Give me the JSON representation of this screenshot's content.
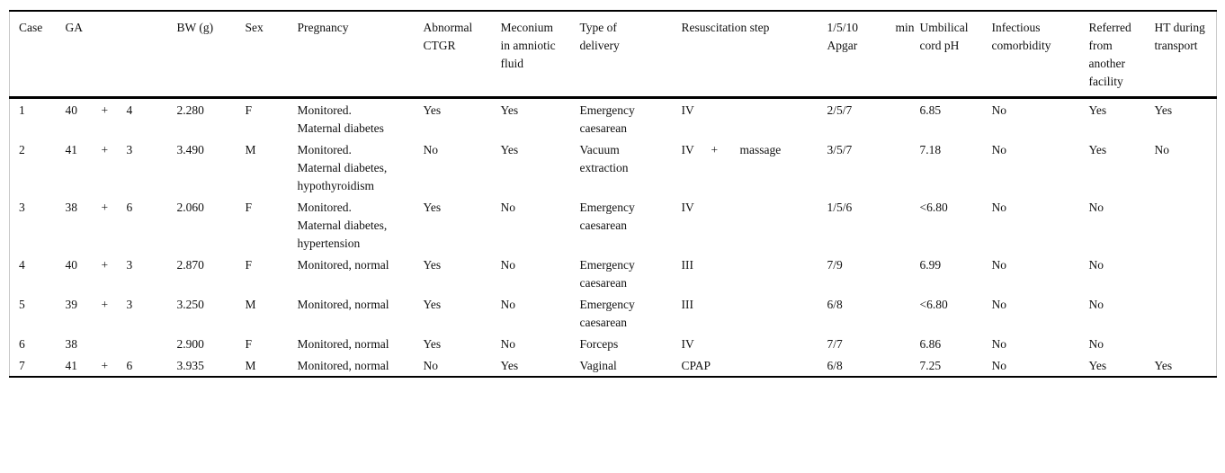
{
  "table": {
    "headers": {
      "case": "Case",
      "ga": "GA",
      "bw": "BW (g)",
      "sex": "Sex",
      "pregnancy": "Pregnancy",
      "ctgr": "Abnormal CTGR",
      "meconium": "Meconium in amniotic fluid",
      "delivery": "Type of delivery",
      "resus": "Resuscitation step",
      "apgar_scores": "1/5/10",
      "apgar_min": "min",
      "apgar_label": "Apgar",
      "ph": "Umbilical cord pH",
      "infectious": "Infectious comorbidity",
      "referred": "Referred from another facility",
      "ht": "HT during transport"
    },
    "fields": [
      "case",
      "ga_w",
      "ga_plus",
      "ga_d",
      "bw",
      "sex",
      "pregnancy",
      "ctgr",
      "meconium",
      "delivery",
      "res1",
      "res2",
      "res3",
      "apgar",
      "ph",
      "infectious",
      "referred",
      "ht"
    ],
    "rows": [
      {
        "case": "1",
        "ga_w": "40",
        "ga_plus": "+",
        "ga_d": "4",
        "bw": "2.280",
        "sex": "F",
        "pregnancy": "Monitored. Maternal diabetes",
        "ctgr": "Yes",
        "meconium": "Yes",
        "delivery": "Emergency caesarean",
        "res1": "IV",
        "res2": "",
        "res3": "",
        "apgar": "2/5/7",
        "ph": "6.85",
        "infectious": "No",
        "referred": "Yes",
        "ht": "Yes"
      },
      {
        "case": "2",
        "ga_w": "41",
        "ga_plus": "+",
        "ga_d": "3",
        "bw": "3.490",
        "sex": "M",
        "pregnancy": "Monitored. Maternal diabetes, hypothyroidism",
        "ctgr": "No",
        "meconium": "Yes",
        "delivery": "Vacuum extraction",
        "res1": "IV",
        "res2": "+",
        "res3": "massage",
        "apgar": "3/5/7",
        "ph": "7.18",
        "infectious": "No",
        "referred": "Yes",
        "ht": "No"
      },
      {
        "case": "3",
        "ga_w": "38",
        "ga_plus": "+",
        "ga_d": "6",
        "bw": "2.060",
        "sex": "F",
        "pregnancy": "Monitored. Maternal diabetes, hypertension",
        "ctgr": "Yes",
        "meconium": "No",
        "delivery": "Emergency caesarean",
        "res1": "IV",
        "res2": "",
        "res3": "",
        "apgar": "1/5/6",
        "ph": "<6.80",
        "infectious": "No",
        "referred": "No",
        "ht": ""
      },
      {
        "case": "4",
        "ga_w": "40",
        "ga_plus": "+",
        "ga_d": "3",
        "bw": "2.870",
        "sex": "F",
        "pregnancy": "Monitored, normal",
        "ctgr": "Yes",
        "meconium": "No",
        "delivery": "Emergency caesarean",
        "res1": "III",
        "res2": "",
        "res3": "",
        "apgar": "7/9",
        "ph": "6.99",
        "infectious": "No",
        "referred": "No",
        "ht": ""
      },
      {
        "case": "5",
        "ga_w": "39",
        "ga_plus": "+",
        "ga_d": "3",
        "bw": "3.250",
        "sex": "M",
        "pregnancy": "Monitored, normal",
        "ctgr": "Yes",
        "meconium": "No",
        "delivery": "Emergency caesarean",
        "res1": "III",
        "res2": "",
        "res3": "",
        "apgar": "6/8",
        "ph": "<6.80",
        "infectious": "No",
        "referred": "No",
        "ht": ""
      },
      {
        "case": "6",
        "ga_w": "38",
        "ga_plus": "",
        "ga_d": "",
        "bw": "2.900",
        "sex": "F",
        "pregnancy": "Monitored, normal",
        "ctgr": "Yes",
        "meconium": "No",
        "delivery": "Forceps",
        "res1": "IV",
        "res2": "",
        "res3": "",
        "apgar": "7/7",
        "ph": "6.86",
        "infectious": "No",
        "referred": "No",
        "ht": ""
      },
      {
        "case": "7",
        "ga_w": "41",
        "ga_plus": "+",
        "ga_d": "6",
        "bw": "3.935",
        "sex": "M",
        "pregnancy": "Monitored, normal",
        "ctgr": "No",
        "meconium": "Yes",
        "delivery": "Vaginal",
        "res1": "CPAP",
        "res2": "",
        "res3": "",
        "apgar": "6/8",
        "ph": "7.25",
        "infectious": "No",
        "referred": "Yes",
        "ht": "Yes"
      }
    ]
  }
}
